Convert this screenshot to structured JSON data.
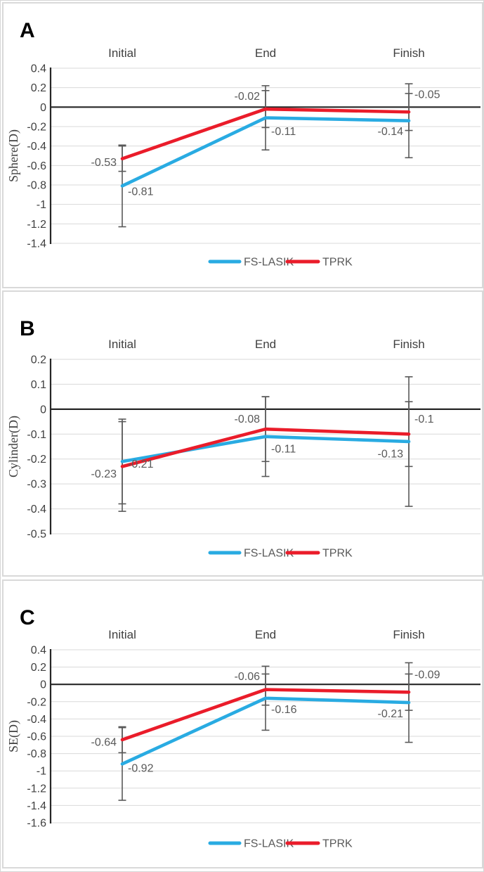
{
  "palette": {
    "fs_lasik_blue": "#29ABE2",
    "tprk_red": "#EA1C2A",
    "gridline": "#D9D9D9",
    "axis_line": "#262626",
    "error_bar": "#595959",
    "value_label_text": "#595959",
    "tick_label_text": "#3F3F3F",
    "category_label_text": "#3F3F3F",
    "axis_title_text": "#3F3F3F",
    "panel_letter_text": "#000000",
    "legend_text": "#595959",
    "panel_border": "#D9D9D9"
  },
  "legend": {
    "items": [
      {
        "label": "FS-LASIK",
        "color": "#29ABE2"
      },
      {
        "label": "TPRK",
        "color": "#EA1C2A"
      }
    ]
  },
  "chart_data": [
    {
      "type": "line",
      "panel_letter": "A",
      "ylabel": "Sphere(D)",
      "categories": [
        "Initial",
        "End",
        "Finish"
      ],
      "ylim": [
        -1.4,
        0.4
      ],
      "ystep": 0.2,
      "grid": true,
      "legend_position": "bottom-center",
      "series": [
        {
          "name": "FS-LASIK",
          "color": "#29ABE2",
          "values": [
            -0.81,
            -0.11,
            -0.14
          ],
          "error": [
            0.42,
            0.33,
            0.38
          ],
          "labels": [
            "-0.81",
            "-0.11",
            "-0.14"
          ],
          "label_side": [
            "right",
            "right",
            "left"
          ],
          "label_y": [
            -0.87,
            -0.25,
            -0.25
          ]
        },
        {
          "name": "TPRK",
          "color": "#EA1C2A",
          "values": [
            -0.53,
            -0.02,
            -0.05
          ],
          "error": [
            0.13,
            0.19,
            0.19
          ],
          "labels": [
            "-0.53",
            "-0.02",
            "-0.05"
          ],
          "label_side": [
            "left",
            "left",
            "right"
          ],
          "label_y": [
            -0.57,
            0.11,
            0.13
          ]
        }
      ]
    },
    {
      "type": "line",
      "panel_letter": "B",
      "ylabel": "Cylinder(D)",
      "categories": [
        "Initial",
        "End",
        "Finish"
      ],
      "ylim": [
        -0.5,
        0.2
      ],
      "ystep": 0.1,
      "grid": true,
      "legend_position": "bottom-center",
      "series": [
        {
          "name": "FS-LASIK",
          "color": "#29ABE2",
          "values": [
            -0.21,
            -0.11,
            -0.13
          ],
          "error": [
            0.17,
            0.16,
            0.26
          ],
          "labels": [
            "-0.21",
            "-0.11",
            "-0.13"
          ],
          "label_side": [
            "right",
            "right",
            "left"
          ],
          "label_y": [
            -0.22,
            -0.16,
            -0.18
          ]
        },
        {
          "name": "TPRK",
          "color": "#EA1C2A",
          "values": [
            -0.23,
            -0.08,
            -0.1
          ],
          "error": [
            0.18,
            0.13,
            0.13
          ],
          "labels": [
            "-0.23",
            "-0.08",
            "-0.1"
          ],
          "label_side": [
            "left",
            "left",
            "right"
          ],
          "label_y": [
            -0.26,
            -0.04,
            -0.04
          ]
        }
      ]
    },
    {
      "type": "line",
      "panel_letter": "C",
      "ylabel": "SE(D)",
      "categories": [
        "Initial",
        "End",
        "Finish"
      ],
      "ylim": [
        -1.6,
        0.4
      ],
      "ystep": 0.2,
      "grid": true,
      "legend_position": "bottom-center",
      "series": [
        {
          "name": "FS-LASIK",
          "color": "#29ABE2",
          "values": [
            -0.92,
            -0.16,
            -0.21
          ],
          "error": [
            0.42,
            0.37,
            0.46
          ],
          "labels": [
            "-0.92",
            "-0.16",
            "-0.21"
          ],
          "label_side": [
            "right",
            "right",
            "left"
          ],
          "label_y": [
            -0.97,
            -0.29,
            -0.34
          ]
        },
        {
          "name": "TPRK",
          "color": "#EA1C2A",
          "values": [
            -0.64,
            -0.06,
            -0.09
          ],
          "error": [
            0.15,
            0.18,
            0.21
          ],
          "labels": [
            "-0.64",
            "-0.06",
            "-0.09"
          ],
          "label_side": [
            "left",
            "left",
            "right"
          ],
          "label_y": [
            -0.67,
            0.09,
            0.11
          ]
        }
      ]
    }
  ]
}
